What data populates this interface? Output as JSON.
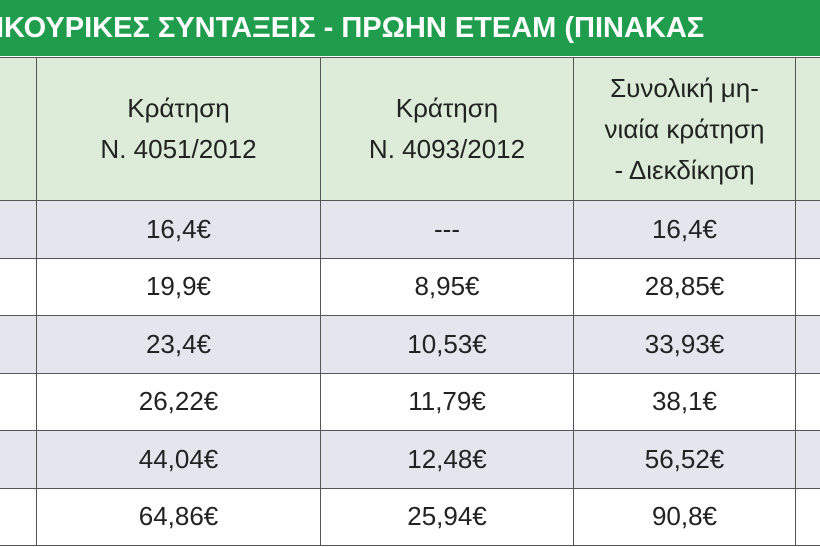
{
  "title": "ΙΚΟΥΡΙΚΕΣ ΣΥΝΤΑΞΕΙΣ - ΠΡΩΗΝ ΕΤΕΑΜ (ΠΙΝΑΚΑΣ",
  "table": {
    "header": [
      [
        "Κράτηση",
        "Ν. 4051/2012"
      ],
      [
        "Κράτηση",
        "Ν. 4093/2012"
      ],
      [
        "Συνολική μη-",
        "νιαία κράτηση",
        "- Διεκδίκηση"
      ]
    ],
    "rows": [
      [
        "16,4€",
        "---",
        "16,4€"
      ],
      [
        "19,9€",
        "8,95€",
        "28,85€"
      ],
      [
        "23,4€",
        "10,53€",
        "33,93€"
      ],
      [
        "26,22€",
        "11,79€",
        "38,1€"
      ],
      [
        "44,04€",
        "12,48€",
        "56,52€"
      ],
      [
        "64,86€",
        "25,94€",
        "90,8€"
      ]
    ]
  }
}
